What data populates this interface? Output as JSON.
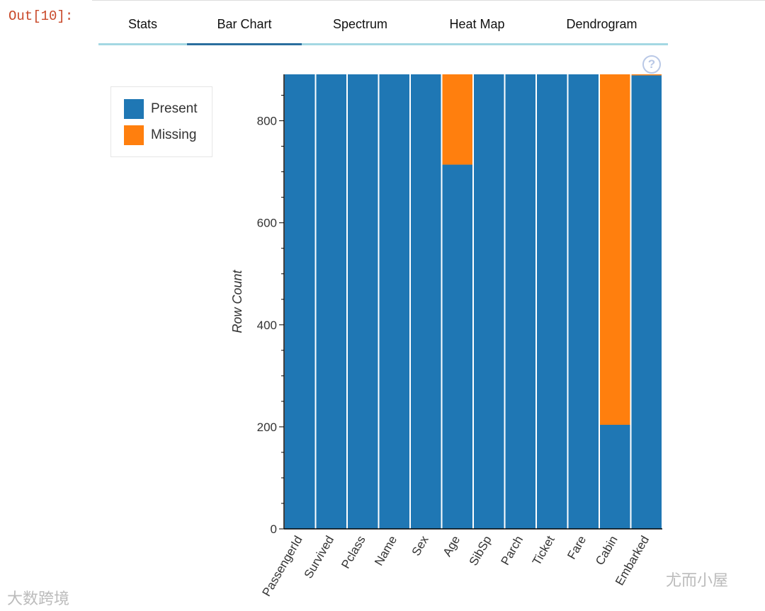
{
  "output_prompt": "Out[10]:",
  "tabs": [
    {
      "label": "Stats",
      "active": false
    },
    {
      "label": "Bar Chart",
      "active": true
    },
    {
      "label": "Spectrum",
      "active": false
    },
    {
      "label": "Heat Map",
      "active": false
    },
    {
      "label": "Dendrogram",
      "active": false
    }
  ],
  "help_icon": "question-circle-icon",
  "help_glyph": "?",
  "watermarks": [
    "大数跨境",
    "尤而小屋"
  ],
  "chart_data": {
    "type": "bar",
    "stacked": true,
    "categories": [
      "PassengerId",
      "Survived",
      "Pclass",
      "Name",
      "Sex",
      "Age",
      "SibSp",
      "Parch",
      "Ticket",
      "Fare",
      "Cabin",
      "Embarked"
    ],
    "series": [
      {
        "name": "Present",
        "color": "#1f77b4",
        "values": [
          891,
          891,
          891,
          891,
          891,
          714,
          891,
          891,
          891,
          891,
          204,
          889
        ]
      },
      {
        "name": "Missing",
        "color": "#ff7f0e",
        "values": [
          0,
          0,
          0,
          0,
          0,
          177,
          0,
          0,
          0,
          0,
          687,
          2
        ]
      }
    ],
    "ylabel": "Row Count",
    "xlabel": "",
    "ylim": [
      0,
      891
    ],
    "yticks": [
      0,
      200,
      400,
      600,
      800
    ],
    "legend_position": "top-left-outside"
  }
}
